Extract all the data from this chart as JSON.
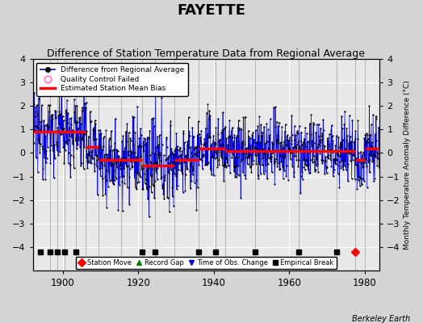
{
  "title": "FAYETTE",
  "subtitle": "Difference of Station Temperature Data from Regional Average",
  "ylabel_right": "Monthly Temperature Anomaly Difference (°C)",
  "xlim": [
    1892,
    1984
  ],
  "ylim": [
    -5,
    4
  ],
  "yticks": [
    -4,
    -3,
    -2,
    -1,
    0,
    1,
    2,
    3,
    4
  ],
  "xticks": [
    1900,
    1920,
    1940,
    1960,
    1980
  ],
  "background_color": "#d4d4d4",
  "plot_bg_color": "#e8e8e8",
  "grid_color": "#ffffff",
  "title_fontsize": 13,
  "subtitle_fontsize": 9,
  "berkeley_earth_text": "Berkeley Earth",
  "segment_biases": [
    {
      "x_start": 1892.0,
      "x_end": 1906.0,
      "bias": 0.9
    },
    {
      "x_start": 1906.0,
      "x_end": 1909.5,
      "bias": 0.25
    },
    {
      "x_start": 1909.5,
      "x_end": 1921.0,
      "bias": -0.3
    },
    {
      "x_start": 1921.0,
      "x_end": 1929.5,
      "bias": -0.55
    },
    {
      "x_start": 1929.5,
      "x_end": 1936.0,
      "bias": -0.3
    },
    {
      "x_start": 1936.0,
      "x_end": 1943.0,
      "bias": 0.2
    },
    {
      "x_start": 1943.0,
      "x_end": 1977.5,
      "bias": 0.08
    },
    {
      "x_start": 1977.5,
      "x_end": 1980.0,
      "bias": -0.3
    },
    {
      "x_start": 1980.0,
      "x_end": 1984.0,
      "bias": 0.2
    }
  ],
  "vertical_lines": [
    1896.5,
    1898.5,
    1900.5,
    1903.5,
    1906.0,
    1909.5,
    1915.5,
    1921.0,
    1924.5,
    1929.5,
    1936.0,
    1940.5,
    1943.0,
    1951.0,
    1962.5,
    1972.5,
    1977.5,
    1980.0
  ],
  "station_moves": [
    1977.5
  ],
  "record_gaps": [],
  "obs_changes": [],
  "empirical_breaks": [
    1894.0,
    1896.5,
    1898.5,
    1900.5,
    1903.5,
    1921.0,
    1924.5,
    1936.0,
    1940.5,
    1951.0,
    1962.5,
    1972.5
  ],
  "data_segments": [
    {
      "y_start": 1892.0,
      "y_end": 1906.0,
      "bias": 0.9,
      "std": 0.85
    },
    {
      "y_start": 1906.0,
      "y_end": 1909.5,
      "bias": 0.35,
      "std": 0.8
    },
    {
      "y_start": 1909.5,
      "y_end": 1921.0,
      "bias": -0.25,
      "std": 0.85
    },
    {
      "y_start": 1921.0,
      "y_end": 1929.5,
      "bias": -0.5,
      "std": 0.9
    },
    {
      "y_start": 1929.5,
      "y_end": 1936.0,
      "bias": -0.2,
      "std": 0.75
    },
    {
      "y_start": 1936.0,
      "y_end": 1943.0,
      "bias": 0.25,
      "std": 0.8
    },
    {
      "y_start": 1943.0,
      "y_end": 1977.5,
      "bias": 0.1,
      "std": 0.7
    },
    {
      "y_start": 1977.5,
      "y_end": 1980.0,
      "bias": -0.25,
      "std": 0.75
    },
    {
      "y_start": 1980.0,
      "y_end": 1984.0,
      "bias": 0.2,
      "std": 0.75
    }
  ]
}
